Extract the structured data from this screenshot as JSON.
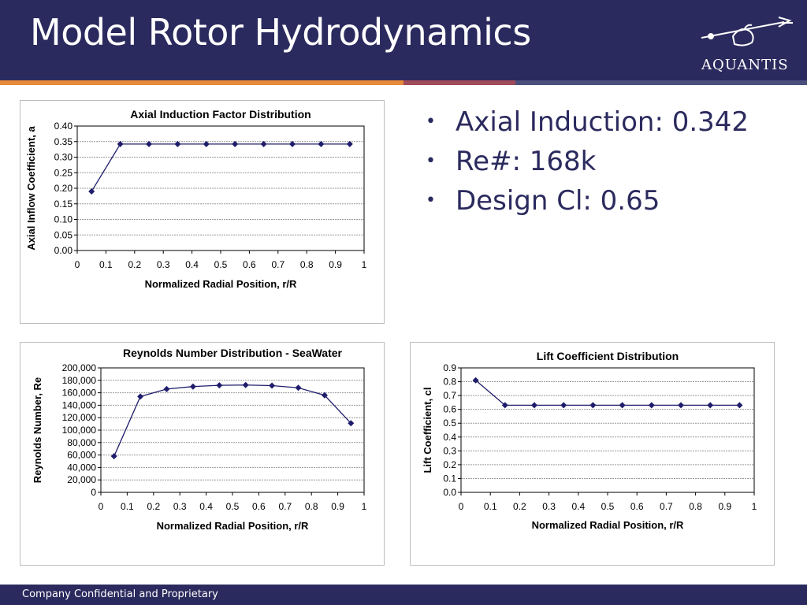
{
  "slide": {
    "title": "Model Rotor Hydrodynamics",
    "logo_text": "AQUANTIS",
    "footer": "Company Confidential and Proprietary",
    "stripe_colors": [
      "#e68a3c",
      "#9e4b5a",
      "#4b4f7c"
    ],
    "bullets": [
      "Axial Induction: 0.342",
      "Re#: 168k",
      "Design Cl: 0.65"
    ]
  },
  "chart_data": [
    {
      "type": "line",
      "title": "Axial Induction Factor Distribution",
      "xlabel": "Normalized Radial Position, r/R",
      "ylabel": "Axial Inflow Coefficient, a",
      "xlim": [
        0,
        1
      ],
      "ylim": [
        0,
        0.4
      ],
      "x_ticks": [
        "0",
        "0.1",
        "0.2",
        "0.3",
        "0.4",
        "0.5",
        "0.6",
        "0.7",
        "0.8",
        "0.9",
        "1"
      ],
      "y_ticks": [
        "0.00",
        "0.05",
        "0.10",
        "0.15",
        "0.20",
        "0.25",
        "0.30",
        "0.35",
        "0.40"
      ],
      "grid": true,
      "color": "#1f1d6b",
      "x": [
        0.05,
        0.15,
        0.25,
        0.35,
        0.45,
        0.55,
        0.65,
        0.75,
        0.85,
        0.95
      ],
      "y": [
        0.19,
        0.342,
        0.342,
        0.342,
        0.342,
        0.342,
        0.342,
        0.342,
        0.342,
        0.342
      ]
    },
    {
      "type": "line",
      "title": "Reynolds Number Distribution - SeaWater",
      "xlabel": "Normalized Radial Position, r/R",
      "ylabel": "Reynolds Number, Re",
      "xlim": [
        0,
        1
      ],
      "ylim": [
        0,
        200000
      ],
      "x_ticks": [
        "0",
        "0.1",
        "0.2",
        "0.3",
        "0.4",
        "0.5",
        "0.6",
        "0.7",
        "0.8",
        "0.9",
        "1"
      ],
      "y_ticks": [
        "0",
        "20,000",
        "40,000",
        "60,000",
        "80,000",
        "100,000",
        "120,000",
        "140,000",
        "160,000",
        "180,000",
        "200,000"
      ],
      "grid": true,
      "color": "#1f1d6b",
      "x": [
        0.05,
        0.15,
        0.25,
        0.35,
        0.45,
        0.55,
        0.65,
        0.75,
        0.85,
        0.95
      ],
      "y": [
        58000,
        154000,
        166000,
        170000,
        172000,
        172500,
        171500,
        168000,
        156000,
        111000
      ]
    },
    {
      "type": "line",
      "title": "Lift Coefficient Distribution",
      "xlabel": "Normalized Radial Position, r/R",
      "ylabel": "Lift Coefficient, cl",
      "xlim": [
        0,
        1
      ],
      "ylim": [
        0,
        0.9
      ],
      "x_ticks": [
        "0",
        "0.1",
        "0.2",
        "0.3",
        "0.4",
        "0.5",
        "0.6",
        "0.7",
        "0.8",
        "0.9",
        "1"
      ],
      "y_ticks": [
        "0.0",
        "0.1",
        "0.2",
        "0.3",
        "0.4",
        "0.5",
        "0.6",
        "0.7",
        "0.8",
        "0.9"
      ],
      "grid": true,
      "color": "#1f1d6b",
      "x": [
        0.05,
        0.15,
        0.25,
        0.35,
        0.45,
        0.55,
        0.65,
        0.75,
        0.85,
        0.95
      ],
      "y": [
        0.81,
        0.63,
        0.63,
        0.63,
        0.63,
        0.63,
        0.63,
        0.63,
        0.63,
        0.63
      ]
    }
  ]
}
